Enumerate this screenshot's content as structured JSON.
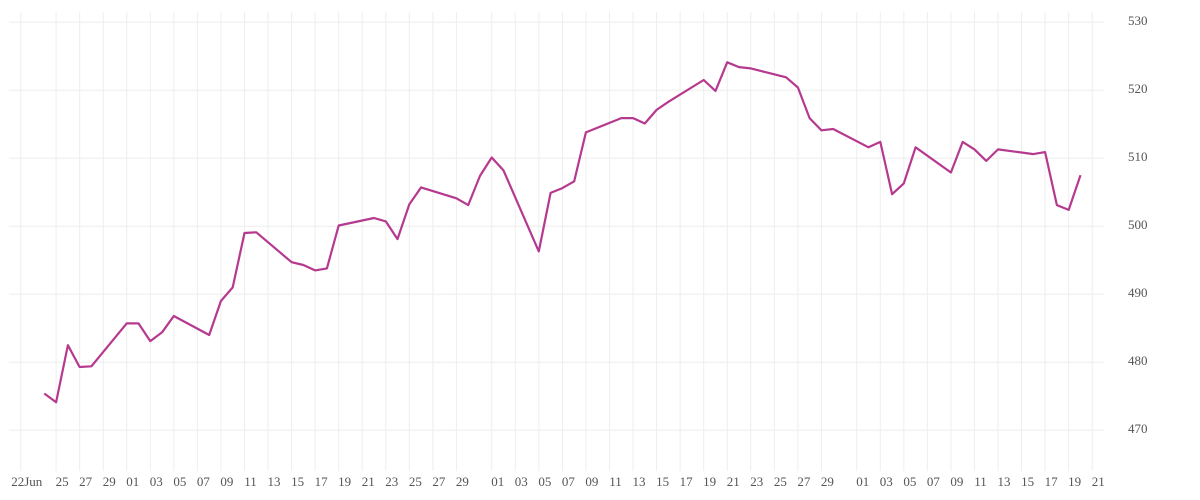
{
  "chart_data": {
    "type": "line",
    "x": [
      "06-24",
      "06-25",
      "06-26",
      "06-27",
      "06-28",
      "07-01",
      "07-02",
      "07-03",
      "07-04",
      "07-05",
      "07-08",
      "07-09",
      "07-10",
      "07-11",
      "07-12",
      "07-15",
      "07-16",
      "07-17",
      "07-18",
      "07-19",
      "07-22",
      "07-23",
      "07-24",
      "07-25",
      "07-26",
      "07-29",
      "07-30",
      "07-31",
      "08-01",
      "08-02",
      "08-05",
      "08-06",
      "08-07",
      "08-08",
      "08-09",
      "08-12",
      "08-13",
      "08-14",
      "08-15",
      "08-16",
      "08-19",
      "08-20",
      "08-21",
      "08-22",
      "08-23",
      "08-26",
      "08-27",
      "08-28",
      "08-29",
      "08-30",
      "09-02",
      "09-03",
      "09-04",
      "09-05",
      "09-06",
      "09-09",
      "09-10",
      "09-11",
      "09-12",
      "09-13",
      "09-16",
      "09-17",
      "09-18",
      "09-19",
      "09-20"
    ],
    "series": [
      {
        "color": "#b5398f",
        "values": [
          475.4,
          474.1,
          482.5,
          479.3,
          479.4,
          485.7,
          485.7,
          483.1,
          484.4,
          486.8,
          484.0,
          489.0,
          491.0,
          499.0,
          499.1,
          494.7,
          494.3,
          493.5,
          493.8,
          500.1,
          501.2,
          500.7,
          498.1,
          503.2,
          505.7,
          504.1,
          503.1,
          507.4,
          510.1,
          508.2,
          496.3,
          504.9,
          505.6,
          506.6,
          513.8,
          515.9,
          515.9,
          515.1,
          517.1,
          518.3,
          521.5,
          519.9,
          524.1,
          523.4,
          523.2,
          521.9,
          520.4,
          515.9,
          514.1,
          514.3,
          511.6,
          512.4,
          504.7,
          506.3,
          511.6,
          507.9,
          512.4,
          511.3,
          509.6,
          511.3,
          510.6,
          510.9,
          503.1,
          502.4,
          507.5
        ]
      }
    ],
    "xlim": [
      "06-21",
      "09-22"
    ],
    "xticks": [
      {
        "value": "06-22",
        "label": "22Jun"
      },
      {
        "value": "06-25",
        "label": "25"
      },
      {
        "value": "06-27",
        "label": "27"
      },
      {
        "value": "06-29",
        "label": "29"
      },
      {
        "value": "07-01",
        "label": "01"
      },
      {
        "value": "07-03",
        "label": "03"
      },
      {
        "value": "07-05",
        "label": "05"
      },
      {
        "value": "07-07",
        "label": "07"
      },
      {
        "value": "07-09",
        "label": "09"
      },
      {
        "value": "07-11",
        "label": "11"
      },
      {
        "value": "07-13",
        "label": "13"
      },
      {
        "value": "07-15",
        "label": "15"
      },
      {
        "value": "07-17",
        "label": "17"
      },
      {
        "value": "07-19",
        "label": "19"
      },
      {
        "value": "07-21",
        "label": "21"
      },
      {
        "value": "07-23",
        "label": "23"
      },
      {
        "value": "07-25",
        "label": "25"
      },
      {
        "value": "07-27",
        "label": "27"
      },
      {
        "value": "07-29",
        "label": "29"
      },
      {
        "value": "08-01",
        "label": "01"
      },
      {
        "value": "08-03",
        "label": "03"
      },
      {
        "value": "08-05",
        "label": "05"
      },
      {
        "value": "08-07",
        "label": "07"
      },
      {
        "value": "08-09",
        "label": "09"
      },
      {
        "value": "08-11",
        "label": "11"
      },
      {
        "value": "08-13",
        "label": "13"
      },
      {
        "value": "08-15",
        "label": "15"
      },
      {
        "value": "08-17",
        "label": "17"
      },
      {
        "value": "08-19",
        "label": "19"
      },
      {
        "value": "08-21",
        "label": "21"
      },
      {
        "value": "08-23",
        "label": "23"
      },
      {
        "value": "08-25",
        "label": "25"
      },
      {
        "value": "08-27",
        "label": "27"
      },
      {
        "value": "08-29",
        "label": "29"
      },
      {
        "value": "09-01",
        "label": "01"
      },
      {
        "value": "09-03",
        "label": "03"
      },
      {
        "value": "09-05",
        "label": "05"
      },
      {
        "value": "09-07",
        "label": "07"
      },
      {
        "value": "09-09",
        "label": "09"
      },
      {
        "value": "09-11",
        "label": "11"
      },
      {
        "value": "09-13",
        "label": "13"
      },
      {
        "value": "09-15",
        "label": "15"
      },
      {
        "value": "09-17",
        "label": "17"
      },
      {
        "value": "09-19",
        "label": "19"
      },
      {
        "value": "09-21",
        "label": "21"
      }
    ],
    "ylim": [
      464,
      531.5
    ],
    "yticks": [
      470,
      480,
      490,
      500,
      510,
      520,
      530
    ],
    "grid": true
  }
}
